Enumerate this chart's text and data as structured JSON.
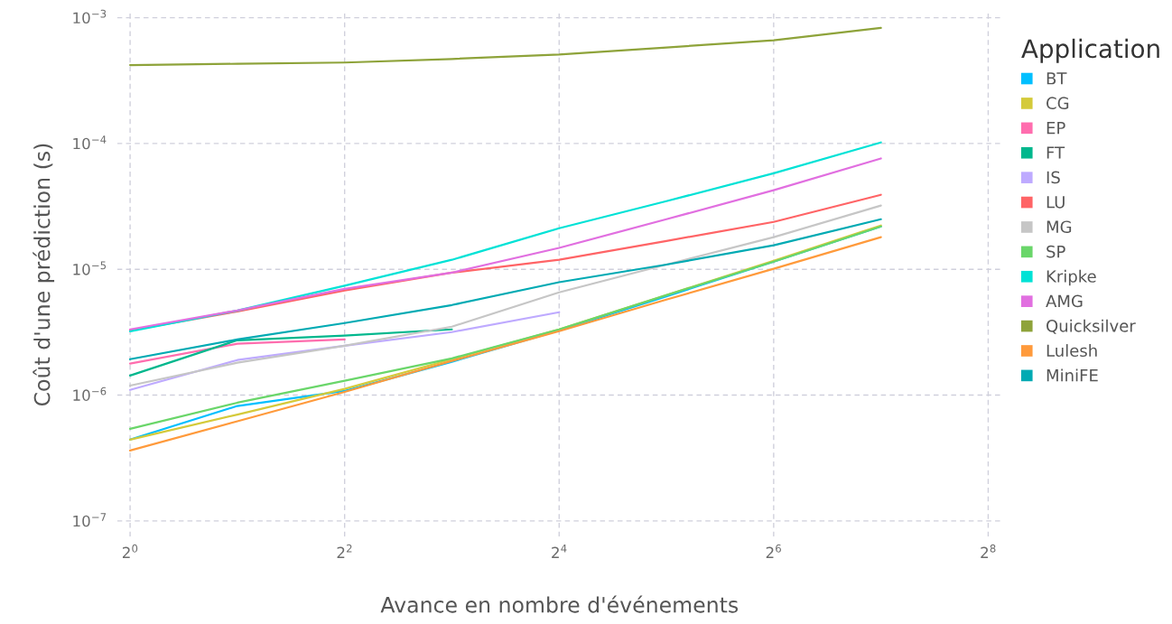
{
  "chart_data": {
    "type": "line",
    "xlabel": "Avance en nombre d'événements",
    "ylabel": "Coût d'une prédiction (s)",
    "legend_title": "Application",
    "x": [
      1,
      2,
      4,
      8,
      16,
      32,
      64,
      128
    ],
    "series": [
      {
        "name": "BT",
        "color": "#00bfff",
        "values": [
          4.43e-07,
          8.2e-07,
          1.08e-06,
          1.84e-06,
          3.27e-06,
          6.1e-06,
          1.15e-05,
          2.19e-05
        ]
      },
      {
        "name": "CG",
        "color": "#d4ca3a",
        "values": [
          4.43e-07,
          7e-07,
          1.12e-06,
          1.93e-06,
          3.33e-06,
          6.24e-06,
          1.17e-05,
          2.23e-05
        ]
      },
      {
        "name": "EP",
        "color": "#ff6dae",
        "values": [
          1.78e-06,
          2.56e-06,
          2.77e-06,
          null,
          null,
          null,
          null,
          null
        ]
      },
      {
        "name": "FT",
        "color": "#00b78d",
        "values": [
          1.43e-06,
          2.73e-06,
          2.97e-06,
          3.33e-06,
          null,
          null,
          null,
          null
        ]
      },
      {
        "name": "IS",
        "color": "#beaaff",
        "values": [
          1.1e-06,
          1.9e-06,
          2.47e-06,
          3.17e-06,
          4.56e-06,
          null,
          null,
          null
        ]
      },
      {
        "name": "LU",
        "color": "#ff6466",
        "values": [
          3.27e-06,
          4.63e-06,
          6.8e-06,
          9.4e-06,
          1.19e-05,
          1.68e-05,
          2.38e-05,
          3.91e-05
        ]
      },
      {
        "name": "MG",
        "color": "#c6c6c6",
        "values": [
          1.19e-06,
          1.81e-06,
          2.47e-06,
          3.5e-06,
          6.56e-06,
          1.09e-05,
          1.8e-05,
          3.21e-05
        ]
      },
      {
        "name": "SP",
        "color": "#6ad66a",
        "values": [
          5.4e-07,
          8.7e-07,
          1.3e-06,
          1.96e-06,
          3.33e-06,
          6.24e-06,
          1.15e-05,
          2.19e-05
        ]
      },
      {
        "name": "Kripke",
        "color": "#00e2d6",
        "values": [
          3.22e-06,
          4.7e-06,
          7.4e-06,
          1.19e-05,
          2.12e-05,
          3.48e-05,
          5.8e-05,
          0.000102
        ]
      },
      {
        "name": "AMG",
        "color": "#e16fe0",
        "values": [
          3.33e-06,
          4.71e-06,
          7e-06,
          9.4e-06,
          1.48e-05,
          2.5e-05,
          4.25e-05,
          7.6e-05
        ]
      },
      {
        "name": "Quicksilver",
        "color": "#8ea33a",
        "values": [
          0.00042,
          0.00043,
          0.00044,
          0.00047,
          0.00051,
          0.00058,
          0.00066,
          0.00083
        ]
      },
      {
        "name": "Lulesh",
        "color": "#ff9a3b",
        "values": [
          3.63e-07,
          6.2e-07,
          1.06e-06,
          1.87e-06,
          3.22e-06,
          5.74e-06,
          1.01e-05,
          1.8e-05
        ]
      },
      {
        "name": "MiniFE",
        "color": "#00aab3",
        "values": [
          1.93e-06,
          2.77e-06,
          3.74e-06,
          5.2e-06,
          7.9e-06,
          1.09e-05,
          1.55e-05,
          2.5e-05
        ]
      }
    ],
    "log": "xy",
    "xlim": [
      0.92,
      280
    ],
    "ylim": [
      7.5e-08,
      0.0011
    ],
    "xticks": [
      {
        "value": 1,
        "label": "2$^{0}$"
      },
      {
        "value": 4,
        "label": "2$^{2}$"
      },
      {
        "value": 16,
        "label": "2$^{4}$"
      },
      {
        "value": 64,
        "label": "2$^{6}$"
      },
      {
        "value": 256,
        "label": "2$^{8}$"
      }
    ],
    "yticks": [
      {
        "value": 1e-07,
        "label": "10$^{−7}$"
      },
      {
        "value": 1e-06,
        "label": "10$^{−6}$"
      },
      {
        "value": 1e-05,
        "label": "10$^{−5}$"
      },
      {
        "value": 0.0001,
        "label": "10$^{−4}$"
      },
      {
        "value": 0.001,
        "label": "10$^{−3}$"
      }
    ],
    "grid": true,
    "legend": "right",
    "line_style": "solid",
    "marker": "none"
  }
}
